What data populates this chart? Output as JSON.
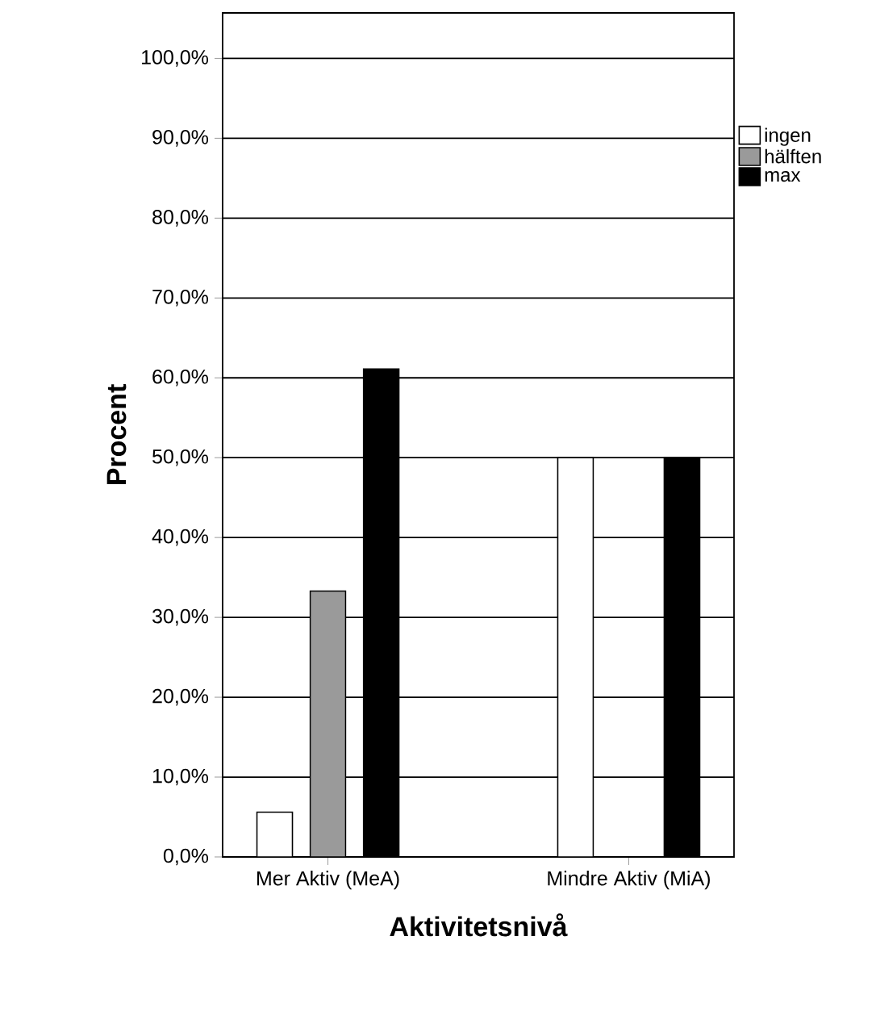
{
  "chart_data": {
    "type": "bar",
    "xlabel": "Aktivitetsnivå",
    "ylabel": "Procent",
    "categories": [
      "Mer Aktiv (MeA)",
      "Mindre Aktiv (MiA)"
    ],
    "series": [
      {
        "name": "ingen",
        "color": "#ffffff",
        "values": [
          5.6,
          50.0
        ]
      },
      {
        "name": "hälften",
        "color": "#9a9a9a",
        "values": [
          33.3,
          null
        ]
      },
      {
        "name": "max",
        "color": "#000000",
        "values": [
          61.1,
          50.0
        ]
      }
    ],
    "ylim": [
      0,
      105.7
    ],
    "yticks": [
      {
        "value": 0,
        "label": "0,0%"
      },
      {
        "value": 10,
        "label": "10,0%"
      },
      {
        "value": 20,
        "label": "20,0%"
      },
      {
        "value": 30,
        "label": "30,0%"
      },
      {
        "value": 40,
        "label": "40,0%"
      },
      {
        "value": 50,
        "label": "50,0%"
      },
      {
        "value": 60,
        "label": "60,0%"
      },
      {
        "value": 70,
        "label": "70,0%"
      },
      {
        "value": 80,
        "label": "80,0%"
      },
      {
        "value": 90,
        "label": "90,0%"
      },
      {
        "value": 100,
        "label": "100,0%"
      }
    ],
    "grid": "y",
    "legend": "right"
  }
}
